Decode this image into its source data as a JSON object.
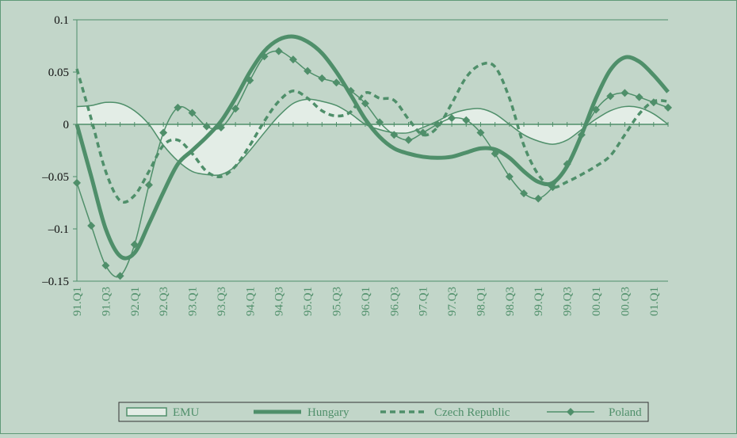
{
  "chart_data": {
    "type": "line",
    "categories": [
      "91.Q1",
      null,
      "91.Q3",
      null,
      "92.Q1",
      null,
      "92.Q3",
      null,
      "93.Q1",
      null,
      "93.Q3",
      null,
      "94.Q1",
      null,
      "94.Q3",
      null,
      "95.Q1",
      null,
      "95.Q3",
      null,
      "96.Q1",
      null,
      "96.Q3",
      null,
      "97.Q1",
      null,
      "97.Q3",
      null,
      "98.Q1",
      null,
      "98.Q3",
      null,
      "99.Q1",
      null,
      "99.Q3",
      null,
      "00.Q1",
      null,
      "00.Q3",
      null,
      "01.Q1",
      null
    ],
    "series": [
      {
        "name": "EMU",
        "color": "#4f8f6a",
        "style": "area",
        "values": [
          0.017,
          0.018,
          0.021,
          0.02,
          0.013,
          0,
          -0.02,
          -0.035,
          -0.045,
          -0.048,
          -0.048,
          -0.04,
          -0.025,
          -0.008,
          0.008,
          0.02,
          0.024,
          0.022,
          0.018,
          0.01,
          0,
          -0.005,
          -0.008,
          -0.008,
          -0.003,
          0.003,
          0.01,
          0.014,
          0.015,
          0.01,
          0,
          -0.01,
          -0.016,
          -0.019,
          -0.015,
          -0.005,
          0.005,
          0.013,
          0.017,
          0.016,
          0.01,
          0
        ]
      },
      {
        "name": "Hungary",
        "color": "#4f8f6a",
        "style": "thick",
        "values": [
          0,
          -0.05,
          -0.1,
          -0.126,
          -0.123,
          -0.095,
          -0.065,
          -0.038,
          -0.025,
          -0.012,
          0.003,
          0.025,
          0.05,
          0.07,
          0.081,
          0.084,
          0.079,
          0.068,
          0.05,
          0.028,
          0.005,
          -0.012,
          -0.023,
          -0.028,
          -0.031,
          -0.032,
          -0.031,
          -0.027,
          -0.023,
          -0.024,
          -0.032,
          -0.045,
          -0.055,
          -0.056,
          -0.04,
          -0.01,
          0.025,
          0.052,
          0.064,
          0.06,
          0.047,
          0.031
        ]
      },
      {
        "name": "Czech Republic",
        "color": "#4f8f6a",
        "style": "dashed",
        "values": [
          0.053,
          0.005,
          -0.045,
          -0.073,
          -0.068,
          -0.045,
          -0.02,
          -0.015,
          -0.028,
          -0.045,
          -0.05,
          -0.04,
          -0.02,
          0.003,
          0.022,
          0.032,
          0.025,
          0.013,
          0.008,
          0.012,
          0.03,
          0.025,
          0.023,
          0.005,
          -0.01,
          -0.003,
          0.02,
          0.045,
          0.057,
          0.055,
          0.025,
          -0.02,
          -0.048,
          -0.06,
          -0.055,
          -0.048,
          -0.04,
          -0.03,
          -0.01,
          0.01,
          0.022,
          0.022
        ]
      },
      {
        "name": "Poland",
        "color": "#4f8f6a",
        "style": "marker",
        "values": [
          -0.056,
          -0.097,
          -0.135,
          -0.145,
          -0.115,
          -0.058,
          -0.008,
          0.016,
          0.011,
          -0.002,
          -0.003,
          0.015,
          0.042,
          0.065,
          0.07,
          0.062,
          0.051,
          0.044,
          0.04,
          0.032,
          0.02,
          0.002,
          -0.01,
          -0.015,
          -0.008,
          0,
          0.006,
          0.004,
          -0.008,
          -0.028,
          -0.05,
          -0.066,
          -0.071,
          -0.06,
          -0.038,
          -0.01,
          0.014,
          0.027,
          0.03,
          0.026,
          0.021,
          0.016
        ]
      }
    ],
    "ylim": [
      -0.15,
      0.1
    ],
    "yticks": [
      {
        "value": -0.15,
        "label": "–0.15"
      },
      {
        "value": -0.1,
        "label": "–0.1"
      },
      {
        "value": -0.05,
        "label": "–0.05"
      },
      0,
      0.05,
      0.1
    ],
    "legend": "bottom"
  }
}
